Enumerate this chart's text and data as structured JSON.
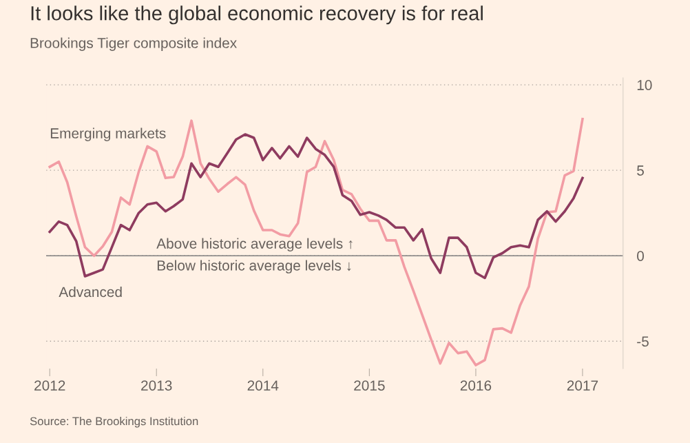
{
  "chart_data": {
    "type": "line",
    "title": "It looks like the global economic recovery is for real",
    "subtitle": "Brookings Tiger composite index",
    "x": [
      "2012-01",
      "2012-02",
      "2012-03",
      "2012-04",
      "2012-05",
      "2012-06",
      "2012-07",
      "2012-08",
      "2012-09",
      "2012-10",
      "2012-11",
      "2012-12",
      "2013-01",
      "2013-02",
      "2013-03",
      "2013-04",
      "2013-05",
      "2013-06",
      "2013-07",
      "2013-08",
      "2013-09",
      "2013-10",
      "2013-11",
      "2013-12",
      "2014-01",
      "2014-02",
      "2014-03",
      "2014-04",
      "2014-05",
      "2014-06",
      "2014-07",
      "2014-08",
      "2014-09",
      "2014-10",
      "2014-11",
      "2014-12",
      "2015-01",
      "2015-02",
      "2015-03",
      "2015-04",
      "2015-05",
      "2015-06",
      "2015-07",
      "2015-08",
      "2015-09",
      "2015-10",
      "2015-11",
      "2015-12",
      "2016-01",
      "2016-02",
      "2016-03",
      "2016-04",
      "2016-05",
      "2016-06",
      "2016-07",
      "2016-08",
      "2016-09",
      "2016-10",
      "2016-11",
      "2016-12",
      "2017-01"
    ],
    "series": [
      {
        "name": "Emerging markets",
        "color": "#f29ca4",
        "values": [
          5.2,
          5.5,
          4.3,
          2.3,
          0.5,
          0.0,
          0.55,
          1.4,
          3.4,
          3.0,
          4.9,
          6.4,
          6.1,
          4.55,
          4.6,
          5.8,
          7.9,
          5.4,
          4.5,
          3.75,
          4.2,
          4.6,
          4.15,
          2.65,
          1.5,
          1.5,
          1.25,
          1.15,
          1.9,
          4.9,
          5.2,
          6.7,
          5.6,
          3.85,
          3.6,
          2.75,
          2.05,
          2.05,
          0.9,
          0.9,
          -0.65,
          -2.05,
          -3.45,
          -4.9,
          -6.3,
          -5.1,
          -5.7,
          -5.6,
          -6.4,
          -6.1,
          -4.3,
          -4.25,
          -4.5,
          -2.9,
          -1.8,
          1.0,
          2.55,
          2.6,
          4.7,
          4.95,
          8.0
        ]
      },
      {
        "name": "Advanced",
        "color": "#8e3b5f",
        "values": [
          1.4,
          2.0,
          1.8,
          0.85,
          -1.2,
          -1.0,
          -0.8,
          0.5,
          1.8,
          1.5,
          2.5,
          3.0,
          3.1,
          2.6,
          2.9,
          3.3,
          5.4,
          4.6,
          5.4,
          5.2,
          6.0,
          6.8,
          7.1,
          6.9,
          5.6,
          6.3,
          5.7,
          6.4,
          5.8,
          6.9,
          6.25,
          5.9,
          5.2,
          3.55,
          3.2,
          2.4,
          2.55,
          2.35,
          2.1,
          1.65,
          1.65,
          0.9,
          1.55,
          -0.15,
          -1.0,
          1.05,
          1.05,
          0.5,
          -1.0,
          -1.3,
          -0.1,
          0.15,
          0.5,
          0.6,
          0.5,
          2.1,
          2.6,
          2.0,
          2.6,
          3.35,
          4.55
        ]
      }
    ],
    "xlim": [
      "2011-12-20",
      "2017-05-20"
    ],
    "xticks": [
      {
        "value": "2012-01-01",
        "label": "2012"
      },
      {
        "value": "2013-01-01",
        "label": "2013"
      },
      {
        "value": "2014-01-01",
        "label": "2014"
      },
      {
        "value": "2015-01-01",
        "label": "2015"
      },
      {
        "value": "2016-01-01",
        "label": "2016"
      },
      {
        "value": "2017-01-01",
        "label": "2017"
      }
    ],
    "ylim": [
      -6.6,
      10.4
    ],
    "yticks": [
      -5,
      0,
      5,
      10
    ],
    "grid": "y",
    "legend": false,
    "line_style": "solid",
    "marker": "none",
    "ref_lines": [
      {
        "axis": "y",
        "value": 0,
        "color": "#7f7f7f"
      }
    ],
    "annotations": [
      "Above historic average levels ↑",
      "Below historic average levels ↓",
      "Source: The Brookings Institution"
    ]
  }
}
